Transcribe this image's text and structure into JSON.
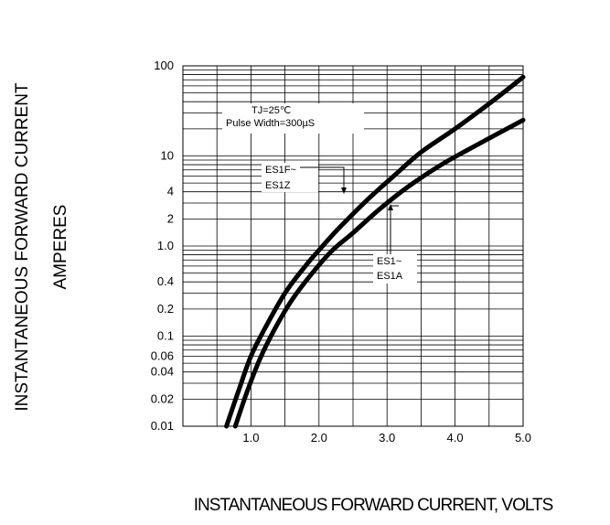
{
  "chart_data": {
    "type": "line",
    "title": "",
    "xlabel": "INSTANTANEOUS FORWARD CURRENT, VOLTS",
    "ylabel": [
      "INSTANTANEOUS FORWARD CURRENT",
      "AMPERES"
    ],
    "xlim": [
      0.0,
      5.0
    ],
    "ylim": [
      0.01,
      100
    ],
    "yscale": "log",
    "grid": true,
    "x_ticks": [
      {
        "value": 1.0,
        "label": "1.0"
      },
      {
        "value": 2.0,
        "label": "2.0"
      },
      {
        "value": 3.0,
        "label": "3.0"
      },
      {
        "value": 4.0,
        "label": "4.0"
      },
      {
        "value": 5.0,
        "label": "5.0"
      }
    ],
    "y_ticks": [
      {
        "value": 100,
        "label": "100"
      },
      {
        "value": 10,
        "label": "10"
      },
      {
        "value": 4,
        "label": "4"
      },
      {
        "value": 2,
        "label": "2"
      },
      {
        "value": 1.0,
        "label": "1.0"
      },
      {
        "value": 0.4,
        "label": "0.4"
      },
      {
        "value": 0.2,
        "label": "0.2"
      },
      {
        "value": 0.1,
        "label": "0.1"
      },
      {
        "value": 0.06,
        "label": "0.06"
      },
      {
        "value": 0.04,
        "label": "0.04"
      },
      {
        "value": 0.02,
        "label": "0.02"
      },
      {
        "value": 0.01,
        "label": "0.01"
      }
    ],
    "annotations": {
      "conditions": [
        "TJ=25℃",
        "Pulse Width=300µS"
      ],
      "curve_a_label": [
        "ES1F~",
        "ES1Z"
      ],
      "curve_b_label": [
        "ES1~",
        "ES1A"
      ]
    },
    "series": [
      {
        "name": "ES1F~ES1Z",
        "x": [
          0.64,
          0.82,
          1.0,
          1.2,
          1.5,
          1.8,
          2.0,
          2.3,
          2.7,
          3.1,
          3.5,
          4.0,
          4.5,
          5.0
        ],
        "y": [
          0.01,
          0.025,
          0.06,
          0.12,
          0.3,
          0.6,
          0.9,
          1.6,
          3.2,
          6.0,
          11,
          20,
          38,
          75
        ]
      },
      {
        "name": "ES1~ES1A",
        "x": [
          0.77,
          0.95,
          1.15,
          1.35,
          1.6,
          1.9,
          2.2,
          2.5,
          2.9,
          3.3,
          3.8,
          4.3,
          5.0
        ],
        "y": [
          0.01,
          0.025,
          0.06,
          0.12,
          0.25,
          0.5,
          0.9,
          1.4,
          2.6,
          4.5,
          8.0,
          13,
          25
        ]
      }
    ]
  }
}
